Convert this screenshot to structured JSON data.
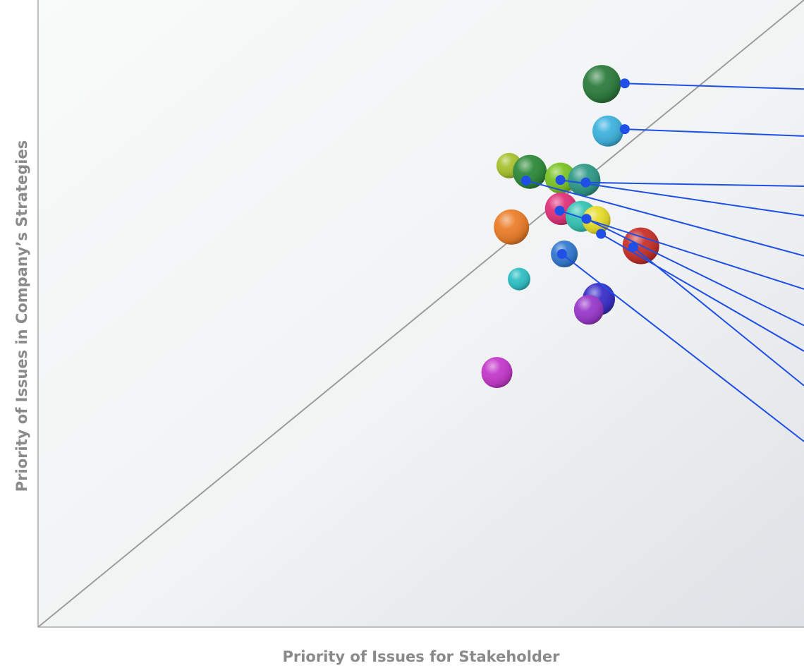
{
  "chart_data": {
    "type": "scatter",
    "title": "",
    "xlabel": "Priority of Issues for Stakeholder",
    "ylabel": "Priority of Issues in Company’s Strategies",
    "xlim": [
      0,
      100
    ],
    "ylim": [
      0,
      100
    ],
    "grid": false,
    "legend": "none",
    "reference_line": "diagonal",
    "points": [
      {
        "x": 73.6,
        "y": 86.6,
        "size": 27,
        "color": "#2e7d3e",
        "callout": true
      },
      {
        "x": 74.4,
        "y": 79.1,
        "size": 22,
        "color": "#3fb3de",
        "callout": true
      },
      {
        "x": 61.5,
        "y": 73.6,
        "size": 18,
        "color": "#a8c230",
        "callout": false
      },
      {
        "x": 64.2,
        "y": 72.6,
        "size": 24,
        "color": "#2f8a3a",
        "callout": true
      },
      {
        "x": 68.2,
        "y": 71.6,
        "size": 22,
        "color": "#7cc426",
        "callout": true
      },
      {
        "x": 71.3,
        "y": 71.3,
        "size": 23,
        "color": "#2f9a86",
        "callout": true
      },
      {
        "x": 68.3,
        "y": 66.7,
        "size": 23,
        "color": "#e0337a",
        "callout": true
      },
      {
        "x": 70.9,
        "y": 65.5,
        "size": 22,
        "color": "#36c4b4",
        "callout": true
      },
      {
        "x": 72.9,
        "y": 64.9,
        "size": 20,
        "color": "#e6dc2a",
        "callout": true
      },
      {
        "x": 61.8,
        "y": 63.8,
        "size": 25,
        "color": "#ec7e2a",
        "callout": false
      },
      {
        "x": 78.7,
        "y": 60.8,
        "size": 26,
        "color": "#c8322a",
        "callout": true
      },
      {
        "x": 68.7,
        "y": 59.5,
        "size": 19,
        "color": "#3479cf",
        "callout": true
      },
      {
        "x": 62.8,
        "y": 55.5,
        "size": 16,
        "color": "#30c0c4",
        "callout": false
      },
      {
        "x": 73.2,
        "y": 52.3,
        "size": 23,
        "color": "#3a30c8",
        "callout": false
      },
      {
        "x": 71.9,
        "y": 50.6,
        "size": 21,
        "color": "#9a3acb",
        "callout": false
      },
      {
        "x": 59.9,
        "y": 40.6,
        "size": 22,
        "color": "#c43acb",
        "callout": false
      }
    ],
    "callouts": [
      {
        "from": [
          76.6,
          86.7
        ],
        "to_y": 85.8
      },
      {
        "from": [
          76.6,
          79.4
        ],
        "to_y": 78.3
      },
      {
        "from": [
          71.5,
          70.9
        ],
        "to_y": 70.3
      },
      {
        "from": [
          68.2,
          71.3
        ],
        "to_y": 65.6
      },
      {
        "from": [
          63.7,
          71.2
        ],
        "to_y": 59.2
      },
      {
        "from": [
          68.1,
          66.4
        ],
        "to_y": 53.9
      },
      {
        "from": [
          71.6,
          65.1
        ],
        "to_y": 48.1
      },
      {
        "from": [
          73.5,
          62.7
        ],
        "to_y": 44.0
      },
      {
        "from": [
          77.7,
          60.6
        ],
        "to_y": 38.5
      },
      {
        "from": [
          68.4,
          59.5
        ],
        "to_y": 29.6
      }
    ]
  }
}
